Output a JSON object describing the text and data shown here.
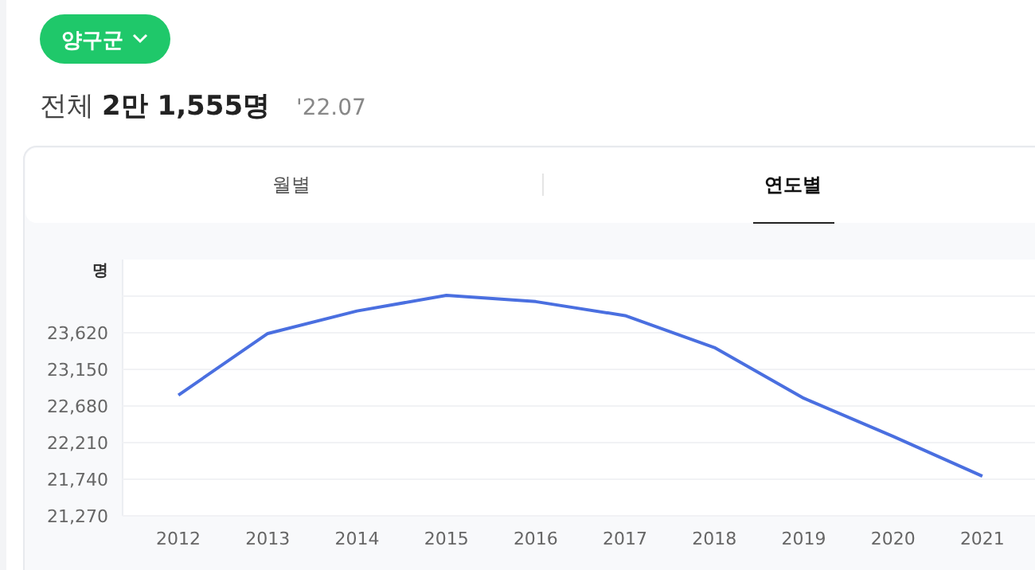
{
  "chart_data": {
    "type": "line",
    "title": "전체 2만 1,555명",
    "subtitle": "'22.07",
    "ylabel": "명",
    "annotations": [
      "양구군",
      "월별",
      "연도별"
    ],
    "categories": [
      "2012",
      "2013",
      "2014",
      "2015",
      "2016",
      "2017",
      "2018",
      "2019",
      "2020",
      "2021"
    ],
    "series": [
      {
        "color": "#4a6fe0",
        "values": [
          22820,
          23610,
          23900,
          24100,
          24020,
          23840,
          23430,
          22780,
          22290,
          21780
        ]
      }
    ],
    "ylim": [
      21270,
      24560
    ],
    "yticks": [
      {
        "value": 21270,
        "label": "21,270"
      },
      {
        "value": 21740,
        "label": "21,740"
      },
      {
        "value": 22210,
        "label": "22,210"
      },
      {
        "value": 22680,
        "label": "22,680"
      },
      {
        "value": 23150,
        "label": "23,150"
      },
      {
        "value": 23620,
        "label": "23,620"
      },
      {
        "value": 24090,
        "label": null
      }
    ],
    "grid": "y",
    "marker": "none",
    "line_style": "solid"
  }
}
